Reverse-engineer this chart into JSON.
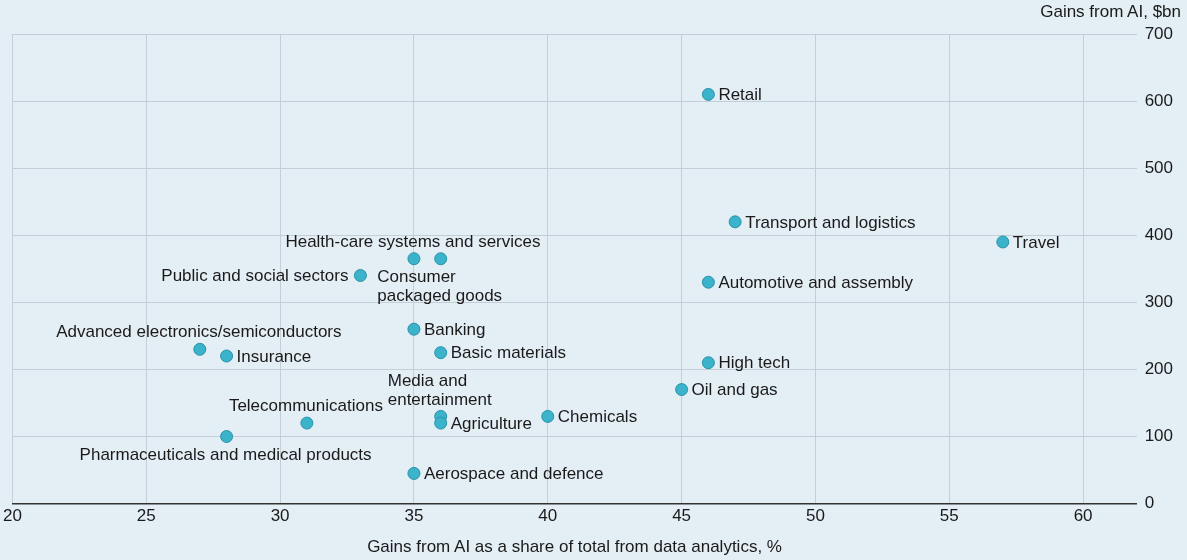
{
  "chart_data": {
    "type": "scatter",
    "xlabel": "Gains from AI as a share of total from data analytics, %",
    "ylabel": "Gains from AI, $bn",
    "x": [
      46,
      47,
      57,
      46,
      46,
      45,
      40,
      35,
      36,
      33,
      35,
      36,
      27,
      28,
      31,
      36,
      36,
      28,
      35
    ],
    "values": [
      610,
      420,
      390,
      330,
      210,
      170,
      130,
      365,
      365,
      340,
      260,
      225,
      230,
      220,
      120,
      130,
      120,
      100,
      45
    ],
    "color": "#3ab3cb",
    "marker": "circle",
    "xlim": [
      20,
      62
    ],
    "xticks": [
      20,
      25,
      30,
      35,
      40,
      45,
      50,
      55,
      60
    ],
    "ylim": [
      0,
      700
    ],
    "yticks": [
      0,
      100,
      200,
      300,
      400,
      500,
      600,
      700
    ],
    "grid": true,
    "annotations": [
      {
        "text": "Retail",
        "x": 46,
        "y": 610
      },
      {
        "text": "Transport and logistics",
        "x": 47,
        "y": 420
      },
      {
        "text": "Travel",
        "x": 57,
        "y": 390
      },
      {
        "text": "Automotive and assembly",
        "x": 46,
        "y": 330
      },
      {
        "text": "High tech",
        "x": 46,
        "y": 210
      },
      {
        "text": "Oil and gas",
        "x": 45,
        "y": 170
      },
      {
        "text": "Chemicals",
        "x": 40,
        "y": 130
      },
      {
        "text": "Health-care systems and services",
        "x": 35,
        "y": 365
      },
      {
        "text": "Consumer packaged goods",
        "x": 36,
        "y": 365
      },
      {
        "text": "Public and social sectors",
        "x": 33,
        "y": 340
      },
      {
        "text": "Banking",
        "x": 35,
        "y": 260
      },
      {
        "text": "Basic materials",
        "x": 36,
        "y": 225
      },
      {
        "text": "Advanced electronics/semiconductors",
        "x": 27,
        "y": 230
      },
      {
        "text": "Insurance",
        "x": 28,
        "y": 220
      },
      {
        "text": "Telecommunications",
        "x": 31,
        "y": 120
      },
      {
        "text": "Media and entertainment",
        "x": 36,
        "y": 130
      },
      {
        "text": "Agriculture",
        "x": 36,
        "y": 120
      },
      {
        "text": "Pharmaceuticals and medical products",
        "x": 28,
        "y": 100
      },
      {
        "text": "Aerospace and defence",
        "x": 35,
        "y": 45
      }
    ]
  }
}
